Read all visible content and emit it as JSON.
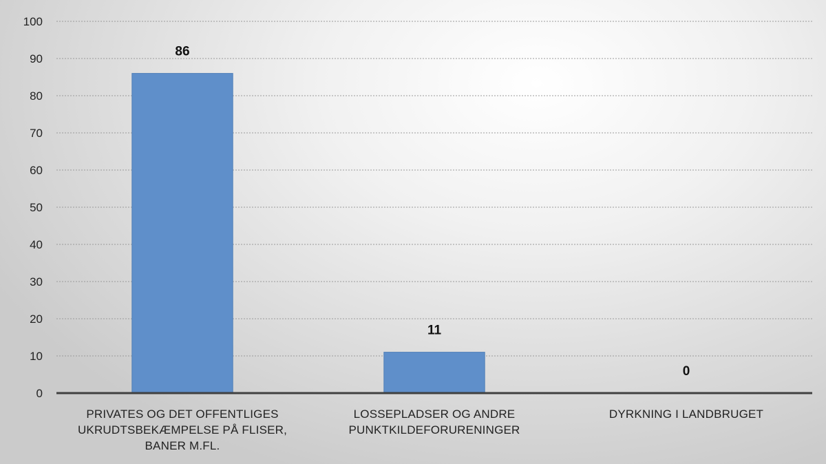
{
  "chart_data": {
    "type": "bar",
    "title": "",
    "xlabel": "",
    "ylabel": "",
    "ylim": [
      0,
      100
    ],
    "yticks": [
      0,
      10,
      20,
      30,
      40,
      50,
      60,
      70,
      80,
      90,
      100
    ],
    "grid": true,
    "legend": "none",
    "categories": [
      "PRIVATES OG DET OFFENTLIGES UKRUDTSBEKÆMPELSE PÅ FLISER, BANER M.FL.",
      "LOSSEPLADSER OG ANDRE PUNKTKILDEFORURENINGER",
      "DYRKNING I LANDBRUGET"
    ],
    "category_lines": [
      [
        "PRIVATES OG DET OFFENTLIGES",
        "UKRUDTSBEKÆMPELSE PÅ FLISER,",
        "BANER M.FL."
      ],
      [
        "LOSSEPLADSER OG ANDRE",
        "PUNKTKILDEFORURENINGER"
      ],
      [
        "DYRKNING I LANDBRUGET"
      ]
    ],
    "values": [
      86,
      11,
      0
    ],
    "data_labels": [
      "86",
      "11",
      "0"
    ],
    "bar_color": "#5f8fca"
  }
}
